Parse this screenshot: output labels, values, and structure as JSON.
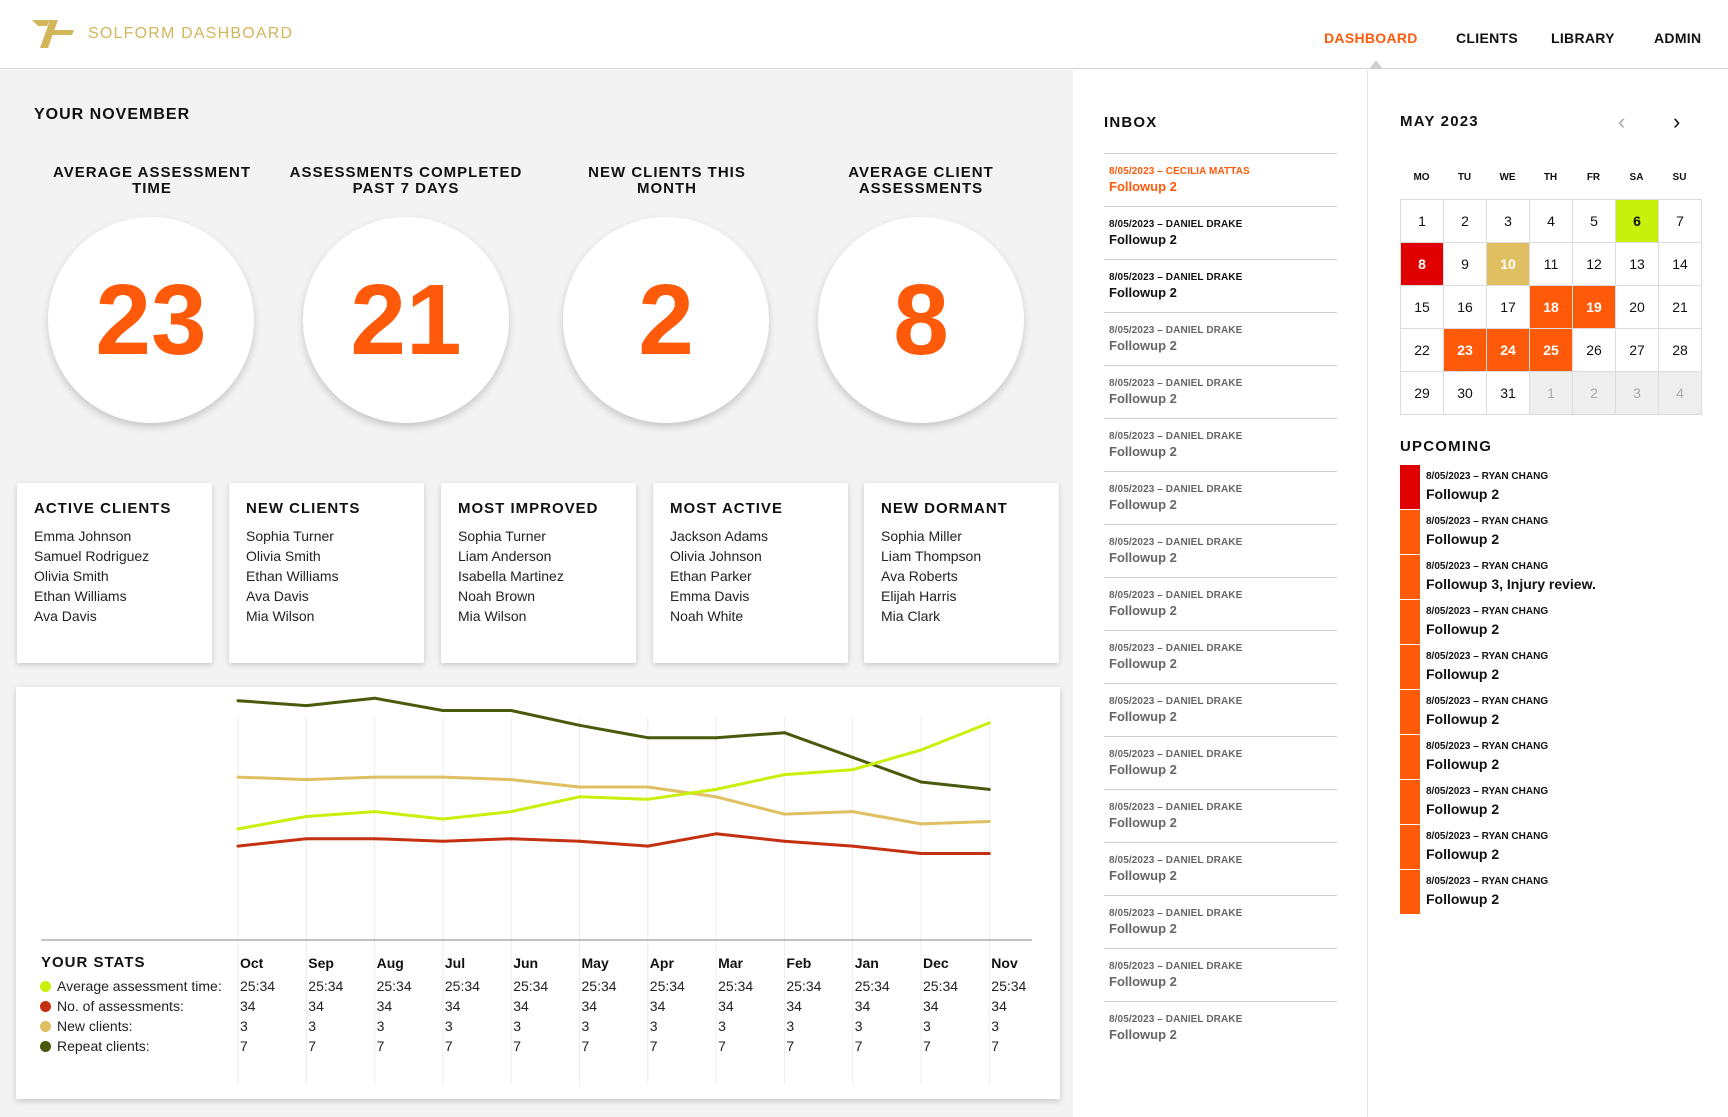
{
  "app": {
    "brand": "SOLFORM DASHBOARD"
  },
  "nav": {
    "items": [
      "DASHBOARD",
      "CLIENTS",
      "LIBRARY",
      "ADMIN"
    ],
    "active": "DASHBOARD"
  },
  "colors": {
    "accent": "#ff5a0a",
    "brand_gold": "#d2b65a",
    "lime": "#c8f00a",
    "red": "#e00000",
    "gold": "#e0bf62",
    "olive": "#4a5a0c"
  },
  "summary": {
    "title": "YOUR NOVEMBER",
    "stats": [
      {
        "label": "AVERAGE ASSESSMENT TIME",
        "value": "23"
      },
      {
        "label": "ASSESSMENTS COMPLETED PAST 7 DAYS",
        "value": "21"
      },
      {
        "label": "NEW CLIENTS THIS MONTH",
        "value": "2"
      },
      {
        "label": "AVERAGE CLIENT ASSESSMENTS",
        "value": "8"
      }
    ]
  },
  "cards": [
    {
      "title": "ACTIVE CLIENTS",
      "names": [
        "Emma Johnson",
        "Samuel Rodriguez",
        "Olivia Smith",
        "Ethan Williams",
        "Ava Davis"
      ]
    },
    {
      "title": "NEW CLIENTS",
      "names": [
        "Sophia Turner",
        "Olivia Smith",
        "Ethan Williams",
        "Ava Davis",
        "Mia Wilson"
      ]
    },
    {
      "title": "MOST IMPROVED",
      "names": [
        "Sophia Turner",
        "Liam Anderson",
        "Isabella Martinez",
        "Noah Brown",
        "Mia Wilson"
      ]
    },
    {
      "title": "MOST ACTIVE",
      "names": [
        "Jackson Adams",
        "Olivia Johnson",
        "Ethan Parker",
        "Emma Davis",
        "Noah White"
      ]
    },
    {
      "title": "NEW DORMANT",
      "names": [
        "Sophia Miller",
        "Liam Thompson",
        "Ava Roberts",
        "Elijah Harris",
        "Mia Clark"
      ]
    }
  ],
  "chart_data": {
    "type": "line",
    "title": "YOUR STATS",
    "categories": [
      "Oct",
      "Sep",
      "Aug",
      "Jul",
      "Jun",
      "May",
      "Apr",
      "Mar",
      "Feb",
      "Jan",
      "Dec",
      "Nov"
    ],
    "ylim": [
      0,
      100
    ],
    "grid": "vertical",
    "series": [
      {
        "name": "Repeat clients",
        "color": "#4a5a0c",
        "values": [
          91,
          89,
          92,
          87,
          87,
          81,
          76,
          76,
          78,
          68,
          58,
          55
        ]
      },
      {
        "name": "New clients",
        "color": "#e0bf62",
        "values": [
          60,
          59,
          60,
          60,
          59,
          56,
          56,
          52,
          45,
          46,
          41,
          42
        ]
      },
      {
        "name": "Average assessment time",
        "color": "#c8f00a",
        "values": [
          39,
          44,
          46,
          43,
          46,
          52,
          51,
          55,
          61,
          63,
          71,
          82
        ]
      },
      {
        "name": "No. of assessments",
        "color": "#c43010",
        "values": [
          32,
          35,
          35,
          34,
          35,
          34,
          32,
          37,
          34,
          32,
          29,
          29
        ]
      }
    ],
    "table": {
      "rows": [
        {
          "label": "Average assessment time:",
          "color": "#c8f00a",
          "values": [
            "25:34",
            "25:34",
            "25:34",
            "25:34",
            "25:34",
            "25:34",
            "25:34",
            "25:34",
            "25:34",
            "25:34",
            "25:34",
            "25:34"
          ]
        },
        {
          "label": "No. of assessments:",
          "color": "#c43010",
          "values": [
            "34",
            "34",
            "34",
            "34",
            "34",
            "34",
            "34",
            "34",
            "34",
            "34",
            "34",
            "34"
          ]
        },
        {
          "label": "New clients:",
          "color": "#e0bf62",
          "values": [
            "3",
            "3",
            "3",
            "3",
            "3",
            "3",
            "3",
            "3",
            "3",
            "3",
            "3",
            "3"
          ]
        },
        {
          "label": "Repeat clients:",
          "color": "#4a5a0c",
          "values": [
            "7",
            "7",
            "7",
            "7",
            "7",
            "7",
            "7",
            "7",
            "7",
            "7",
            "7",
            "7"
          ]
        }
      ]
    }
  },
  "inbox": {
    "title": "INBOX",
    "messages": [
      {
        "meta": "8/05/2023 – CECILIA MATTAS",
        "subject": "Followup 2",
        "state": "highlight"
      },
      {
        "meta": "8/05/2023 – DANIEL DRAKE",
        "subject": "Followup 2",
        "state": "unread"
      },
      {
        "meta": "8/05/2023 – DANIEL DRAKE",
        "subject": "Followup 2",
        "state": "unread"
      },
      {
        "meta": "8/05/2023 – DANIEL DRAKE",
        "subject": "Followup 2",
        "state": "read"
      },
      {
        "meta": "8/05/2023 – DANIEL DRAKE",
        "subject": "Followup 2",
        "state": "read"
      },
      {
        "meta": "8/05/2023 – DANIEL DRAKE",
        "subject": "Followup 2",
        "state": "read"
      },
      {
        "meta": "8/05/2023 – DANIEL DRAKE",
        "subject": "Followup 2",
        "state": "read"
      },
      {
        "meta": "8/05/2023 – DANIEL DRAKE",
        "subject": "Followup 2",
        "state": "read"
      },
      {
        "meta": "8/05/2023 – DANIEL DRAKE",
        "subject": "Followup 2",
        "state": "read"
      },
      {
        "meta": "8/05/2023 – DANIEL DRAKE",
        "subject": "Followup 2",
        "state": "read"
      },
      {
        "meta": "8/05/2023 – DANIEL DRAKE",
        "subject": "Followup 2",
        "state": "read"
      },
      {
        "meta": "8/05/2023 – DANIEL DRAKE",
        "subject": "Followup 2",
        "state": "read"
      },
      {
        "meta": "8/05/2023 – DANIEL DRAKE",
        "subject": "Followup 2",
        "state": "read"
      },
      {
        "meta": "8/05/2023 – DANIEL DRAKE",
        "subject": "Followup 2",
        "state": "read"
      },
      {
        "meta": "8/05/2023 – DANIEL DRAKE",
        "subject": "Followup 2",
        "state": "read"
      },
      {
        "meta": "8/05/2023 – DANIEL DRAKE",
        "subject": "Followup 2",
        "state": "read"
      },
      {
        "meta": "8/05/2023 – DANIEL DRAKE",
        "subject": "Followup 2",
        "state": "read"
      }
    ]
  },
  "calendar": {
    "title": "MAY 2023",
    "weekdays": [
      "MO",
      "TU",
      "WE",
      "TH",
      "FR",
      "SA",
      "SU"
    ],
    "weeks": [
      [
        {
          "d": "1"
        },
        {
          "d": "2"
        },
        {
          "d": "3"
        },
        {
          "d": "4"
        },
        {
          "d": "5"
        },
        {
          "d": "6",
          "c": "lime"
        },
        {
          "d": "7"
        }
      ],
      [
        {
          "d": "8",
          "c": "red"
        },
        {
          "d": "9"
        },
        {
          "d": "10",
          "c": "gold"
        },
        {
          "d": "11"
        },
        {
          "d": "12"
        },
        {
          "d": "13"
        },
        {
          "d": "14"
        }
      ],
      [
        {
          "d": "15"
        },
        {
          "d": "16"
        },
        {
          "d": "17"
        },
        {
          "d": "18",
          "c": "orange"
        },
        {
          "d": "19",
          "c": "orange"
        },
        {
          "d": "20"
        },
        {
          "d": "21"
        }
      ],
      [
        {
          "d": "22"
        },
        {
          "d": "23",
          "c": "orange"
        },
        {
          "d": "24",
          "c": "orange"
        },
        {
          "d": "25",
          "c": "orange"
        },
        {
          "d": "26"
        },
        {
          "d": "27"
        },
        {
          "d": "28"
        }
      ],
      [
        {
          "d": "29"
        },
        {
          "d": "30"
        },
        {
          "d": "31"
        },
        {
          "d": "1",
          "c": "muted"
        },
        {
          "d": "2",
          "c": "muted"
        },
        {
          "d": "3",
          "c": "muted"
        },
        {
          "d": "4",
          "c": "muted"
        }
      ]
    ]
  },
  "upcoming": {
    "title": "UPCOMING",
    "items": [
      {
        "meta": "8/05/2023 – RYAN CHANG",
        "subject": "Followup 2",
        "color": "#e00000"
      },
      {
        "meta": "8/05/2023 – RYAN CHANG",
        "subject": "Followup 2",
        "color": "#ff5a0a"
      },
      {
        "meta": "8/05/2023 – RYAN CHANG",
        "subject": "Followup 3, Injury review.",
        "color": "#ff5a0a"
      },
      {
        "meta": "8/05/2023 – RYAN CHANG",
        "subject": "Followup 2",
        "color": "#ff5a0a"
      },
      {
        "meta": "8/05/2023 – RYAN CHANG",
        "subject": "Followup 2",
        "color": "#ff5a0a"
      },
      {
        "meta": "8/05/2023 – RYAN CHANG",
        "subject": "Followup 2",
        "color": "#ff5a0a"
      },
      {
        "meta": "8/05/2023 – RYAN CHANG",
        "subject": "Followup 2",
        "color": "#ff5a0a"
      },
      {
        "meta": "8/05/2023 – RYAN CHANG",
        "subject": "Followup 2",
        "color": "#ff5a0a"
      },
      {
        "meta": "8/05/2023 – RYAN CHANG",
        "subject": "Followup 2",
        "color": "#ff5a0a"
      },
      {
        "meta": "8/05/2023 – RYAN CHANG",
        "subject": "Followup 2",
        "color": "#ff5a0a"
      }
    ]
  }
}
